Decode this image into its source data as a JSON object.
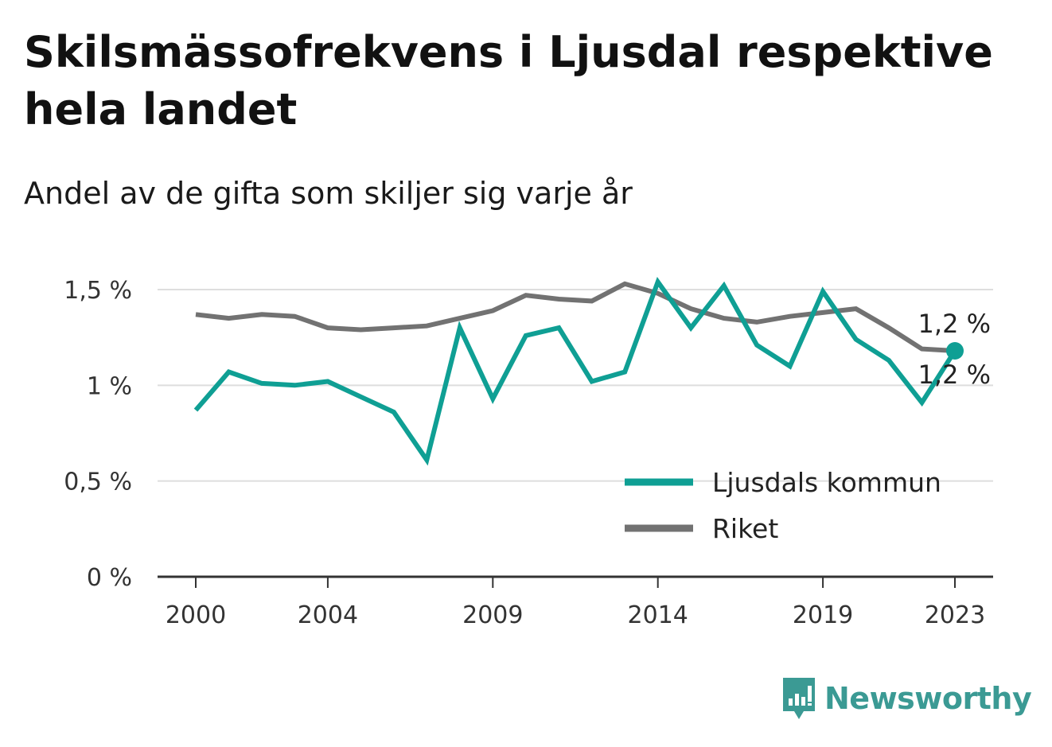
{
  "title": "Skilsmässofrekvens i Ljusdal respektive hela landet",
  "subtitle": "Andel av de gifta som skiljer sig varje år",
  "brand": {
    "name": "Newsworthy",
    "icon": "newsworthy-logo-icon",
    "color": "#3b9a94"
  },
  "chart_data": {
    "type": "line",
    "x": [
      2000,
      2001,
      2002,
      2003,
      2004,
      2005,
      2006,
      2007,
      2008,
      2009,
      2010,
      2011,
      2012,
      2013,
      2014,
      2015,
      2016,
      2017,
      2018,
      2019,
      2020,
      2021,
      2022,
      2023
    ],
    "x_ticks": [
      2000,
      2004,
      2009,
      2014,
      2019,
      2023
    ],
    "x_tick_labels": [
      "2000",
      "2004",
      "2009",
      "2014",
      "2019",
      "2023"
    ],
    "y_ticks": [
      0,
      0.5,
      1,
      1.5
    ],
    "y_tick_labels": [
      "0 %",
      "0,5 %",
      "1 %",
      "1,5 %"
    ],
    "ylim": [
      0,
      1.5
    ],
    "grid": true,
    "legend_position": "bottom-right",
    "series": [
      {
        "name": "Ljusdals kommun",
        "color": "#0f9f94",
        "values": [
          0.87,
          1.07,
          1.01,
          1.0,
          1.02,
          0.94,
          0.86,
          0.61,
          1.3,
          0.93,
          1.26,
          1.3,
          1.02,
          1.07,
          1.54,
          1.3,
          1.52,
          1.21,
          1.1,
          1.49,
          1.24,
          1.13,
          0.91,
          1.18
        ],
        "end_label": "1,2 %"
      },
      {
        "name": "Riket",
        "color": "#727272",
        "values": [
          1.37,
          1.35,
          1.37,
          1.36,
          1.3,
          1.29,
          1.3,
          1.31,
          1.35,
          1.39,
          1.47,
          1.45,
          1.44,
          1.53,
          1.48,
          1.4,
          1.35,
          1.33,
          1.36,
          1.38,
          1.4,
          1.3,
          1.19,
          1.18
        ],
        "end_label": "1,2 %"
      }
    ]
  }
}
